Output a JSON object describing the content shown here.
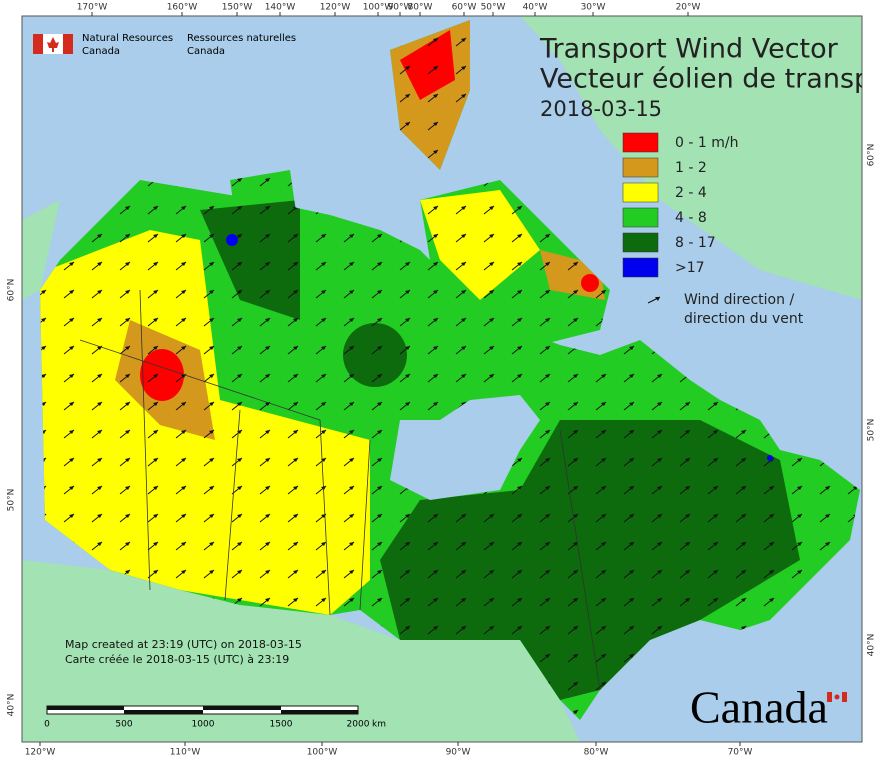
{
  "header": {
    "agency_en": [
      "Natural Resources",
      "Canada"
    ],
    "agency_fr": [
      "Ressources naturelles",
      "Canada"
    ]
  },
  "title": {
    "line1": "Transport Wind Vector",
    "line2": "Vecteur éolien de transp",
    "date": "2018-03-15"
  },
  "legend": {
    "items": [
      {
        "label": "0 - 1 m/h",
        "color": "#ff0000"
      },
      {
        "label": "1 - 2",
        "color": "#d4981c"
      },
      {
        "label": "2 - 4",
        "color": "#ffff00"
      },
      {
        "label": "4 - 8",
        "color": "#22cc22"
      },
      {
        "label": "8 - 17",
        "color": "#0d6b0d"
      },
      {
        "label": ">17",
        "color": "#0000ee"
      }
    ],
    "arrow_label": [
      "Wind direction /",
      "direction du vent"
    ]
  },
  "top_longitudes": [
    "170°W",
    "160°W",
    "150°W",
    "140°W",
    "120°W",
    "100°W",
    "90°W",
    "80°W",
    "60°W",
    "50°W",
    "40°W",
    "30°W",
    "20°W"
  ],
  "bottom_longitudes": [
    "120°W",
    "110°W",
    "100°W",
    "90°W",
    "80°W",
    "70°W"
  ],
  "left_latitudes": [
    "60°N",
    "50°N",
    "40°N"
  ],
  "right_latitudes": [
    "60°N",
    "50°N",
    "40°N"
  ],
  "notes": [
    "Map created at 23:19 (UTC) on 2018-03-15",
    "Carte créée le 2018-03-15 (UTC) à 23:19"
  ],
  "scale": {
    "labels": [
      "0",
      "500",
      "1000",
      "1500",
      "2000"
    ],
    "unit": "km"
  },
  "wordmark": "Canada"
}
